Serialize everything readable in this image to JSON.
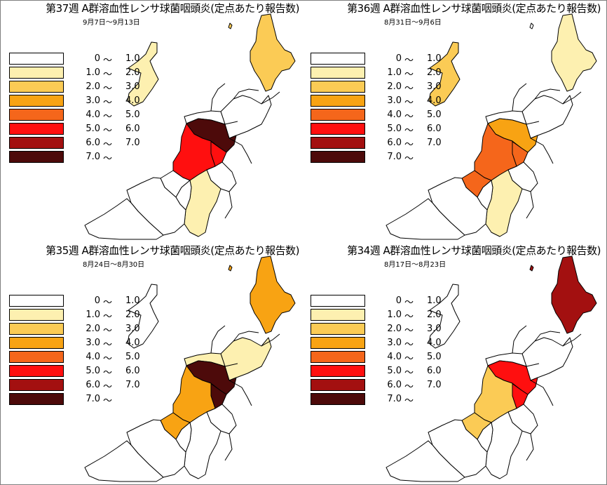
{
  "legend": {
    "tilde": "〜",
    "bins": [
      {
        "from": "0",
        "to": "1.0",
        "color": "#ffffff"
      },
      {
        "from": "1.0",
        "to": "2.0",
        "color": "#fdf0b0"
      },
      {
        "from": "2.0",
        "to": "3.0",
        "color": "#fbcb55"
      },
      {
        "from": "3.0",
        "to": "4.0",
        "color": "#f8a313"
      },
      {
        "from": "4.0",
        "to": "5.0",
        "color": "#f5661b"
      },
      {
        "from": "5.0",
        "to": "6.0",
        "color": "#ff0f0f"
      },
      {
        "from": "6.0",
        "to": "7.0",
        "color": "#a31010"
      },
      {
        "from": "7.0",
        "to": "",
        "color": "#4d0a0a"
      }
    ]
  },
  "panels": [
    {
      "title": "第37週 A群溶血性レンサ球菌咽頭炎(定点あたり報告数)",
      "date": "9月7日〜9月13日",
      "regions": {
        "murakami": 2,
        "niigata_city": 0,
        "shibata": 0,
        "niitsu": 7,
        "sanjo": 5,
        "nagaoka": 5,
        "kashiwazaki": 0,
        "uonuma": 0,
        "minamiuonuma": 1,
        "tokamachi": 0,
        "itoigawa": 0,
        "joetsu": 0,
        "sado": 1,
        "awashima": 2
      }
    },
    {
      "title": "第36週 A群溶血性レンサ球菌咽頭炎(定点あたり報告数)",
      "date": "8月31日〜9月6日",
      "regions": {
        "murakami": 1,
        "niigata_city": 0,
        "shibata": 0,
        "niitsu": 3,
        "sanjo": 4,
        "nagaoka": 4,
        "kashiwazaki": 4,
        "uonuma": 0,
        "minamiuonuma": 1,
        "tokamachi": 0,
        "itoigawa": 0,
        "joetsu": 0,
        "sado": 2,
        "awashima": 0
      }
    },
    {
      "title": "第35週 A群溶血性レンサ球菌咽頭炎(定点あたり報告数)",
      "date": "8月24日〜8月30日",
      "regions": {
        "murakami": 3,
        "niigata_city": 1,
        "shibata": 1,
        "niitsu": 7,
        "sanjo": 7,
        "nagaoka": 3,
        "kashiwazaki": 3,
        "uonuma": 0,
        "minamiuonuma": 0,
        "tokamachi": 0,
        "itoigawa": 0,
        "joetsu": 0,
        "sado": 0,
        "awashima": 3
      }
    },
    {
      "title": "第34週 A群溶血性レンサ球菌咽頭炎(定点あたり報告数)",
      "date": "8月17日〜8月23日",
      "regions": {
        "murakami": 6,
        "niigata_city": 0,
        "shibata": 0,
        "niitsu": 5,
        "sanjo": 5,
        "nagaoka": 2,
        "kashiwazaki": 2,
        "uonuma": 0,
        "minamiuonuma": 0,
        "tokamachi": 0,
        "itoigawa": 0,
        "joetsu": 0,
        "sado": 0,
        "awashima": 6
      }
    }
  ]
}
